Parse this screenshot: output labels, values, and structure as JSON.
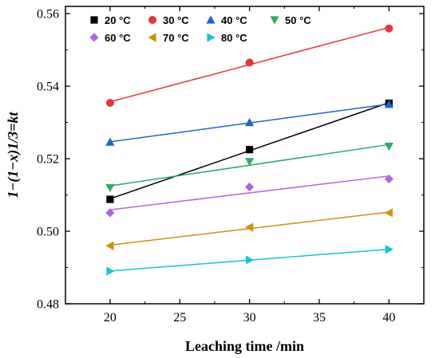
{
  "chart_data": {
    "type": "scatter",
    "xlabel": "Leaching time /min",
    "ylabel": "1−(1−x)1/3=kt",
    "xlim": [
      16.8,
      42.5
    ],
    "ylim": [
      0.48,
      0.562
    ],
    "x_ticks": [
      20,
      25,
      30,
      35,
      40
    ],
    "x_tick_labels": [
      "20",
      "25",
      "30",
      "35",
      "40"
    ],
    "y_ticks": [
      0.48,
      0.5,
      0.52,
      0.54,
      0.56
    ],
    "y_tick_labels": [
      "0.48",
      "0.50",
      "0.52",
      "0.54",
      "0.56"
    ],
    "grid": false,
    "legend_position": "top-left",
    "x": [
      20,
      30,
      40
    ],
    "series": [
      {
        "name": "20 °C",
        "color": "#000000",
        "marker": "square",
        "values": [
          0.5088,
          0.5225,
          0.5353
        ]
      },
      {
        "name": "30 °C",
        "color": "#e8353b",
        "marker": "circle",
        "values": [
          0.5354,
          0.5465,
          0.5559
        ]
      },
      {
        "name": "40 °C",
        "color": "#1f63cf",
        "marker": "triangle-up",
        "values": [
          0.5246,
          0.53,
          0.535
        ]
      },
      {
        "name": "50 °C",
        "color": "#2ea86a",
        "marker": "triangle-down",
        "values": [
          0.512,
          0.5192,
          0.5234
        ]
      },
      {
        "name": "60 °C",
        "color": "#b066e0",
        "marker": "diamond",
        "values": [
          0.5051,
          0.5122,
          0.5144
        ]
      },
      {
        "name": "70 °C",
        "color": "#c9930c",
        "marker": "triangle-left",
        "values": [
          0.496,
          0.5011,
          0.5051
        ]
      },
      {
        "name": "80 °C",
        "color": "#14c6cf",
        "marker": "triangle-right",
        "values": [
          0.489,
          0.4921,
          0.495
        ]
      }
    ]
  }
}
